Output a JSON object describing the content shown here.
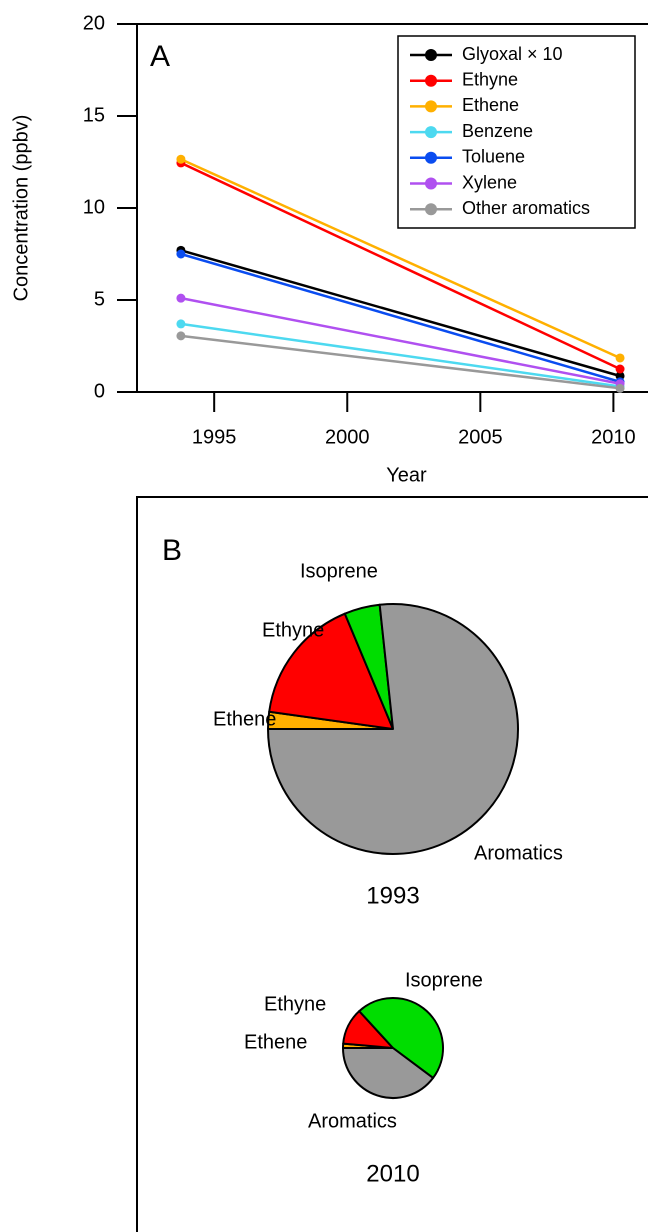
{
  "chart_data": [
    {
      "type": "line",
      "panel_label": "A",
      "x_label": "Year",
      "y_label": "Concentration (ppbv)",
      "x": [
        1993.75,
        2010.25
      ],
      "xlim": [
        1992.1,
        2011.3
      ],
      "xticks": [
        1995,
        2000,
        2005,
        2010
      ],
      "ylim": [
        0,
        20
      ],
      "yticks": [
        0,
        5,
        10,
        15,
        20
      ],
      "legend": "upper right",
      "series": [
        {
          "name": "Glyoxal × 10",
          "color": "#000000",
          "values": [
            7.7,
            0.87
          ]
        },
        {
          "name": "Ethyne",
          "color": "#ff0000",
          "values": [
            12.45,
            1.25
          ]
        },
        {
          "name": "Ethene",
          "color": "#ffb000",
          "values": [
            12.65,
            1.85
          ]
        },
        {
          "name": "Benzene",
          "color": "#4dd9f0",
          "values": [
            3.7,
            0.3
          ]
        },
        {
          "name": "Toluene",
          "color": "#0a4cf0",
          "values": [
            7.5,
            0.55
          ]
        },
        {
          "name": "Xylene",
          "color": "#b050f0",
          "values": [
            5.1,
            0.45
          ]
        },
        {
          "name": "Other aromatics",
          "color": "#999999",
          "values": [
            3.05,
            0.2
          ]
        }
      ]
    },
    {
      "type": "pie",
      "panel_label": "B",
      "title": "1993",
      "categories": [
        "Ethene",
        "Ethyne",
        "Isoprene",
        "Aromatics"
      ],
      "values": [
        2.2,
        16.5,
        4.6,
        76.7
      ],
      "colors": [
        "#ffb000",
        "#ff0000",
        "#00dd00",
        "#999999"
      ]
    },
    {
      "type": "pie",
      "title": "2010",
      "categories": [
        "Ethene",
        "Ethyne",
        "Isoprene",
        "Aromatics"
      ],
      "values": [
        1.4,
        11.8,
        47,
        39.8
      ],
      "colors": [
        "#ffb000",
        "#ff0000",
        "#00dd00",
        "#999999"
      ]
    }
  ]
}
